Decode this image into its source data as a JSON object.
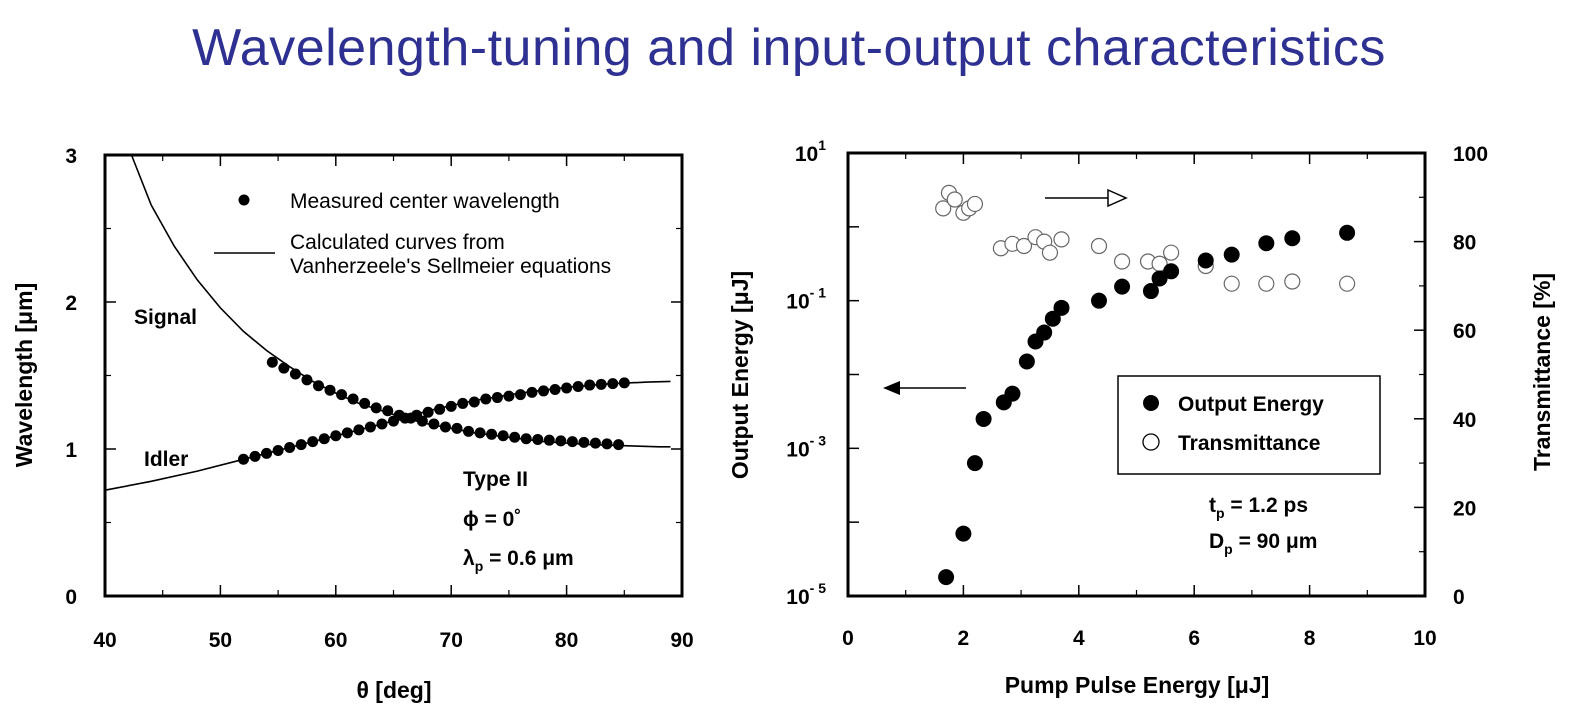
{
  "title": "Wavelength-tuning and input-output characteristics",
  "chart_data": [
    {
      "type": "scatter",
      "xlabel": "θ [deg]",
      "ylabel": "Wavelength [μm]",
      "xlim": [
        40,
        90
      ],
      "ylim": [
        0,
        3
      ],
      "xticks": [
        "40",
        "50",
        "60",
        "70",
        "80",
        "90"
      ],
      "yticks": [
        "0",
        "1",
        "2",
        "3"
      ],
      "legend": {
        "placement": "top-center",
        "points": "Measured center wavelength",
        "line_1": "Calculated curves from",
        "line_2": "Vanherzeele's Sellmeier equations"
      },
      "labels": {
        "signal": "Signal",
        "idler": "Idler"
      },
      "annotation": {
        "type": "Type II",
        "phi": "ϕ = 0˚",
        "lambda": "λ",
        "lambda_sub": "p",
        "lambda_val": " = 0.6 μm"
      },
      "series": [
        {
          "kind": "measured",
          "x": [
            54.5,
            55.5,
            56.5,
            57.5,
            58.5,
            59.5,
            60.5,
            61.5,
            62.5,
            63.5,
            64.5,
            65.5,
            66.5,
            67.5,
            68.5,
            69.5,
            70.5,
            71.5,
            72.5,
            73.5,
            74.5,
            75.5,
            76.5,
            77.5,
            78.5,
            79.5,
            80.5,
            81.5,
            82.5,
            83.5,
            84.5
          ],
          "y": [
            1.59,
            1.55,
            1.51,
            1.47,
            1.43,
            1.4,
            1.37,
            1.34,
            1.31,
            1.28,
            1.26,
            1.23,
            1.21,
            1.19,
            1.17,
            1.15,
            1.14,
            1.12,
            1.11,
            1.1,
            1.09,
            1.08,
            1.07,
            1.065,
            1.06,
            1.055,
            1.05,
            1.045,
            1.04,
            1.035,
            1.03
          ]
        },
        {
          "kind": "measured",
          "x": [
            52.0,
            53.0,
            54.0,
            55.0,
            56.0,
            57.0,
            58.0,
            59.0,
            60.0,
            61.0,
            62.0,
            63.0,
            64.0,
            65.0,
            66.0,
            67.0,
            68.0,
            69.0,
            70.0,
            71.0,
            72.0,
            73.0,
            74.0,
            75.0,
            76.0,
            77.0,
            78.0,
            79.0,
            80.0,
            81.0,
            82.0,
            83.0,
            84.0,
            85.0
          ],
          "y": [
            0.93,
            0.95,
            0.97,
            0.99,
            1.01,
            1.03,
            1.05,
            1.07,
            1.09,
            1.11,
            1.13,
            1.15,
            1.17,
            1.19,
            1.21,
            1.23,
            1.25,
            1.27,
            1.29,
            1.31,
            1.32,
            1.34,
            1.35,
            1.36,
            1.37,
            1.385,
            1.395,
            1.405,
            1.415,
            1.425,
            1.435,
            1.44,
            1.445,
            1.45
          ]
        },
        {
          "kind": "calculated",
          "x": [
            42.3,
            44,
            46,
            48,
            50,
            52,
            54,
            56,
            58,
            60,
            62,
            64,
            66,
            68,
            70,
            72,
            74,
            76,
            78,
            80,
            82,
            84,
            86,
            88,
            89
          ],
          "y": [
            3.0,
            2.66,
            2.38,
            2.15,
            1.96,
            1.8,
            1.67,
            1.56,
            1.46,
            1.38,
            1.31,
            1.26,
            1.21,
            1.17,
            1.14,
            1.11,
            1.09,
            1.07,
            1.05,
            1.04,
            1.03,
            1.025,
            1.02,
            1.015,
            1.015
          ]
        },
        {
          "kind": "calculated",
          "x": [
            40,
            44,
            48,
            52,
            56,
            60,
            64,
            68,
            72,
            76,
            80,
            84,
            87,
            89
          ],
          "y": [
            0.72,
            0.78,
            0.85,
            0.93,
            1.01,
            1.09,
            1.17,
            1.26,
            1.33,
            1.38,
            1.42,
            1.445,
            1.455,
            1.46
          ]
        }
      ]
    },
    {
      "type": "scatter",
      "xlabel": "Pump Pulse Energy [μJ]",
      "ylabel": "Output Energy [μJ]",
      "ylabel_right": "Transmittance [%]",
      "xlim": [
        0,
        10
      ],
      "ylim": [
        -5,
        1
      ],
      "yscale": "log",
      "ylim_right": [
        0,
        100
      ],
      "xticks": [
        "0",
        "2",
        "4",
        "6",
        "8",
        "10"
      ],
      "yticks": [
        {
          "base": "10",
          "exp": "1"
        },
        {
          "base": "10",
          "exp": "- 1"
        },
        {
          "base": "10",
          "exp": "- 3"
        },
        {
          "base": "10",
          "exp": "- 5"
        }
      ],
      "yticks_right": [
        "0",
        "20",
        "40",
        "60",
        "80",
        "100"
      ],
      "legend": {
        "placement": "bottom-right",
        "output": "Output Energy",
        "transmittance": "Transmittance"
      },
      "annotation": {
        "tp": "t",
        "tp_sub": "p",
        "tp_val": " = 1.2 ps",
        "dp": "D",
        "dp_sub": "p",
        "dp_val": " = 90 μm"
      },
      "series": [
        {
          "name": "Output Energy",
          "x": [
            1.7,
            2.0,
            2.2,
            2.35,
            2.7,
            2.85,
            3.1,
            3.25,
            3.4,
            3.55,
            3.7,
            4.35,
            4.75,
            5.25,
            5.4,
            5.6,
            6.2,
            6.65,
            7.25,
            7.7,
            8.65
          ],
          "y": [
            1.8e-05,
            7e-05,
            0.00063,
            0.0025,
            0.0042,
            0.0055,
            0.015,
            0.028,
            0.037,
            0.057,
            0.08,
            0.1,
            0.155,
            0.135,
            0.2,
            0.25,
            0.35,
            0.42,
            0.6,
            0.7,
            0.83
          ]
        },
        {
          "name": "Transmittance",
          "x": [
            1.65,
            1.75,
            1.85,
            2.0,
            2.1,
            2.2,
            2.65,
            2.85,
            3.05,
            3.25,
            3.4,
            3.5,
            3.7,
            4.35,
            4.75,
            5.2,
            5.4,
            5.6,
            6.2,
            6.65,
            7.25,
            7.7,
            8.65
          ],
          "y": [
            87.5,
            91,
            89.5,
            86.5,
            87.5,
            88.5,
            78.5,
            79.5,
            79,
            81,
            80,
            77.5,
            80.5,
            79,
            75.5,
            75.5,
            75,
            77.5,
            74.5,
            70.5,
            70.5,
            71,
            70.5
          ]
        }
      ]
    }
  ]
}
